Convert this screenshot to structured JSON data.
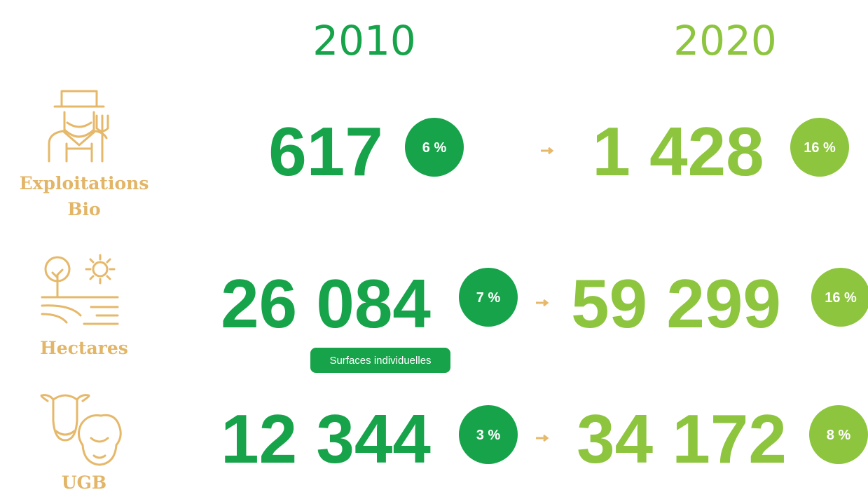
{
  "headers": [
    "2010",
    "2020"
  ],
  "rows": [
    {
      "label": [
        "Exploitations",
        "Bio"
      ],
      "value_2010": "617",
      "share_2010": "6 %",
      "value_2020": "1 428",
      "share_2020": "16 %"
    },
    {
      "label": [
        "Hectares"
      ],
      "value_2010": "26 084",
      "share_2010": "7 %",
      "value_2020": "59 299",
      "share_2020": "16 %",
      "note": "Surfaces individuelles"
    },
    {
      "label": [
        "UGB"
      ],
      "value_2010": "12 344",
      "share_2010": "3 %",
      "value_2020": "34 172",
      "share_2020": "8 %"
    }
  ]
}
